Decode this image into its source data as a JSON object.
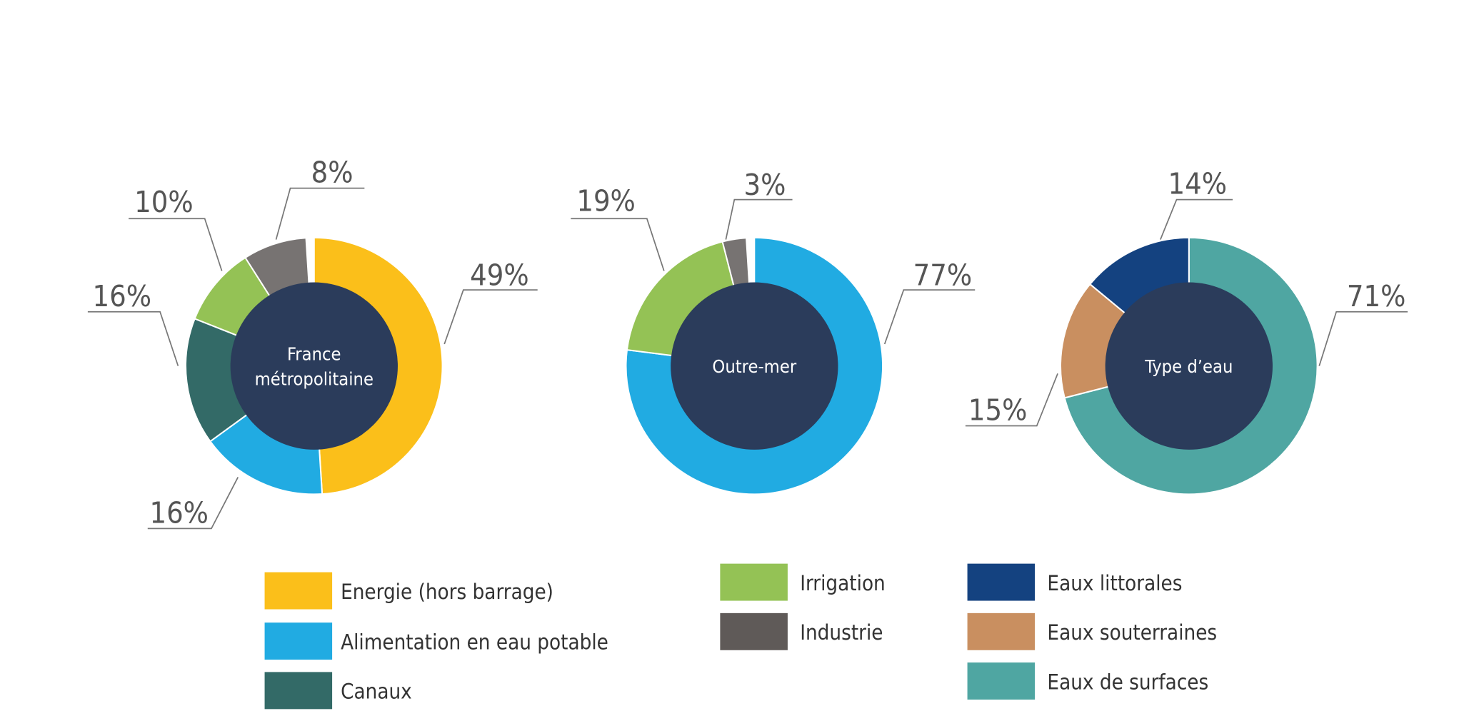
{
  "chart_data": [
    {
      "type": "pie",
      "variant": "donut",
      "title": "France métropolitaine",
      "title_lines": [
        "France",
        "métropolitaine"
      ],
      "categories": [
        "Energie (hors barrage)",
        "Alimentation en eau potable",
        "Canaux",
        "Irrigation",
        "Industrie"
      ],
      "values": [
        49,
        16,
        16,
        10,
        8
      ],
      "labels": [
        "49%",
        "16%",
        "16%",
        "10%",
        "8%"
      ]
    },
    {
      "type": "pie",
      "variant": "donut",
      "title": "Outre-mer",
      "title_lines": [
        "Outre-mer"
      ],
      "categories": [
        "Alimentation en eau potable",
        "Irrigation",
        "Industrie"
      ],
      "values": [
        77,
        19,
        3
      ],
      "labels": [
        "77%",
        "19%",
        "3%"
      ]
    },
    {
      "type": "pie",
      "variant": "donut",
      "title": "Type d’eau",
      "title_lines": [
        "Type d’eau"
      ],
      "categories": [
        "Eaux de surfaces",
        "Eaux souterraines",
        "Eaux littorales"
      ],
      "values": [
        71,
        15,
        14
      ],
      "labels": [
        "71%",
        "15%",
        "14%"
      ]
    }
  ],
  "colors": {
    "Energie (hors barrage)": "#FBBF1A",
    "Alimentation en eau potable": "#21ABE2",
    "Canaux": "#336A67",
    "Irrigation": "#94C255",
    "Industrie": "#777372",
    "Eaux littorales": "#144280",
    "Eaux souterraines": "#C98F60",
    "Eaux de surfaces": "#4FA6A2",
    "center": "#2B3C5B"
  },
  "legend": {
    "placement": "bottom",
    "items": [
      {
        "label": "Energie (hors barrage)",
        "color": "#FBBF1A"
      },
      {
        "label": "Alimentation en eau potable",
        "color": "#21ABE2"
      },
      {
        "label": "Canaux",
        "color": "#336A67"
      },
      {
        "label": "Irrigation",
        "color": "#94C255"
      },
      {
        "label": "Industrie",
        "color": "#5F5A58"
      },
      {
        "label": "Eaux littorales",
        "color": "#144280"
      },
      {
        "label": "Eaux souterraines",
        "color": "#C98F60"
      },
      {
        "label": "Eaux de surfaces",
        "color": "#4FA6A2"
      }
    ]
  }
}
